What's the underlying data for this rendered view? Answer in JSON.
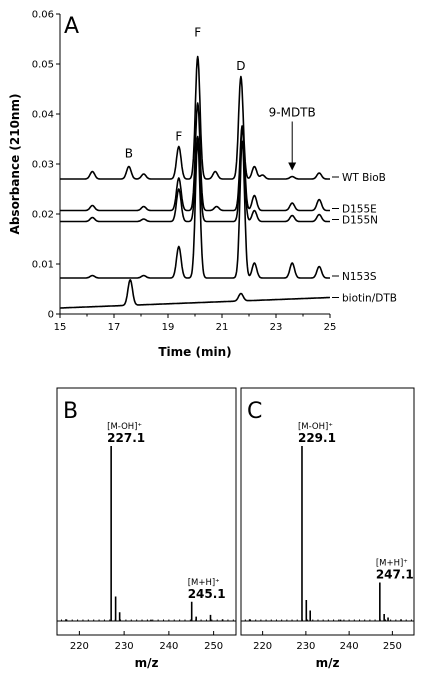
{
  "chart_data": [
    {
      "panel": "A",
      "type": "line",
      "xlabel": "Time (min)",
      "ylabel": "Absorbance (210nm)",
      "xlim": [
        15,
        25
      ],
      "ylim": [
        0,
        0.06
      ],
      "xticks": [
        15,
        17,
        19,
        21,
        23,
        25
      ],
      "yticks": [
        0,
        0.01,
        0.02,
        0.03,
        0.04,
        0.05,
        0.06
      ],
      "ytick_labels": [
        "0",
        "0.01",
        "0.02",
        "0.03",
        "0.04",
        "0.05",
        "0.06"
      ],
      "series": [
        {
          "name": "WT BioB",
          "baseline": 0.027,
          "peaks": [
            [
              16.2,
              0.0015
            ],
            [
              17.55,
              0.0025
            ],
            [
              18.1,
              0.001
            ],
            [
              19.4,
              0.0065
            ],
            [
              20.1,
              0.0245
            ],
            [
              20.75,
              0.0015
            ],
            [
              21.7,
              0.0205
            ],
            [
              22.2,
              0.0025
            ],
            [
              22.5,
              0.0008
            ],
            [
              23.6,
              0.0005
            ],
            [
              24.6,
              0.0012
            ]
          ]
        },
        {
          "name": "D155E",
          "baseline": 0.0207,
          "peaks": [
            [
              16.2,
              0.001
            ],
            [
              18.1,
              0.0008
            ],
            [
              19.4,
              0.0065
            ],
            [
              20.1,
              0.0215
            ],
            [
              20.8,
              0.0008
            ],
            [
              21.75,
              0.017
            ],
            [
              22.2,
              0.003
            ],
            [
              23.6,
              0.0015
            ],
            [
              24.6,
              0.0022
            ]
          ]
        },
        {
          "name": "D155N",
          "baseline": 0.0185,
          "peaks": [
            [
              16.2,
              0.0008
            ],
            [
              18.1,
              0.0005
            ],
            [
              19.4,
              0.0065
            ],
            [
              20.1,
              0.017
            ],
            [
              21.75,
              0.0185
            ],
            [
              22.2,
              0.0022
            ],
            [
              23.6,
              0.0012
            ],
            [
              24.6,
              0.0014
            ]
          ]
        },
        {
          "name": "N153S",
          "baseline": 0.0072,
          "peaks": [
            [
              16.2,
              0.0005
            ],
            [
              18.1,
              0.0005
            ],
            [
              19.4,
              0.0063
            ],
            [
              20.1,
              0.0275
            ],
            [
              21.75,
              0.0275
            ],
            [
              22.2,
              0.003
            ],
            [
              23.6,
              0.003
            ],
            [
              24.6,
              0.0023
            ]
          ]
        },
        {
          "name": "biotin/DTB",
          "baseline": 0.0012,
          "baseline_end": 0.0033,
          "peaks": [
            [
              17.6,
              0.0051
            ],
            [
              21.7,
              0.0015
            ]
          ]
        }
      ],
      "annotations": [
        {
          "text": "B",
          "x": 17.55,
          "y": 0.0313
        },
        {
          "text": "F",
          "x": 19.4,
          "y": 0.0347
        },
        {
          "text": "F",
          "x": 20.1,
          "y": 0.0555
        },
        {
          "text": "D",
          "x": 21.7,
          "y": 0.0488
        },
        {
          "text": "9-MDTB",
          "x": 23.6,
          "y": 0.0395,
          "arrow_to": 0.0287
        }
      ]
    },
    {
      "panel": "B",
      "type": "bar",
      "xlabel": "m/z",
      "xlim": [
        215,
        255
      ],
      "xticks": [
        220,
        230,
        240,
        250
      ],
      "peaks": [
        {
          "mz": 227.1,
          "rel": 1.0
        },
        {
          "mz": 228.1,
          "rel": 0.14
        },
        {
          "mz": 229.0,
          "rel": 0.05
        },
        {
          "mz": 245.1,
          "rel": 0.11
        },
        {
          "mz": 246.1,
          "rel": 0.025
        },
        {
          "mz": 249.3,
          "rel": 0.035
        },
        {
          "mz": 217.0,
          "rel": 0.01
        },
        {
          "mz": 236.0,
          "rel": 0.008
        },
        {
          "mz": 252.0,
          "rel": 0.01
        }
      ],
      "labels": [
        {
          "ion": "[M-OH]⁺",
          "mz_text": "227.1",
          "at": 227.1
        },
        {
          "ion": "[M+H]⁺",
          "mz_text": "245.1",
          "at": 245.1
        }
      ]
    },
    {
      "panel": "C",
      "type": "bar",
      "xlabel": "m/z",
      "xlim": [
        215,
        255
      ],
      "xticks": [
        220,
        230,
        240,
        250
      ],
      "peaks": [
        {
          "mz": 229.1,
          "rel": 1.0
        },
        {
          "mz": 230.1,
          "rel": 0.12
        },
        {
          "mz": 231.0,
          "rel": 0.06
        },
        {
          "mz": 247.1,
          "rel": 0.22
        },
        {
          "mz": 248.1,
          "rel": 0.04
        },
        {
          "mz": 249.0,
          "rel": 0.02
        },
        {
          "mz": 217.0,
          "rel": 0.01
        },
        {
          "mz": 238.0,
          "rel": 0.008
        },
        {
          "mz": 252.0,
          "rel": 0.01
        }
      ],
      "labels": [
        {
          "ion": "[M-OH]⁺",
          "mz_text": "229.1",
          "at": 229.1
        },
        {
          "ion": "[M+H]⁺",
          "mz_text": "247.1",
          "at": 247.1
        }
      ]
    }
  ]
}
